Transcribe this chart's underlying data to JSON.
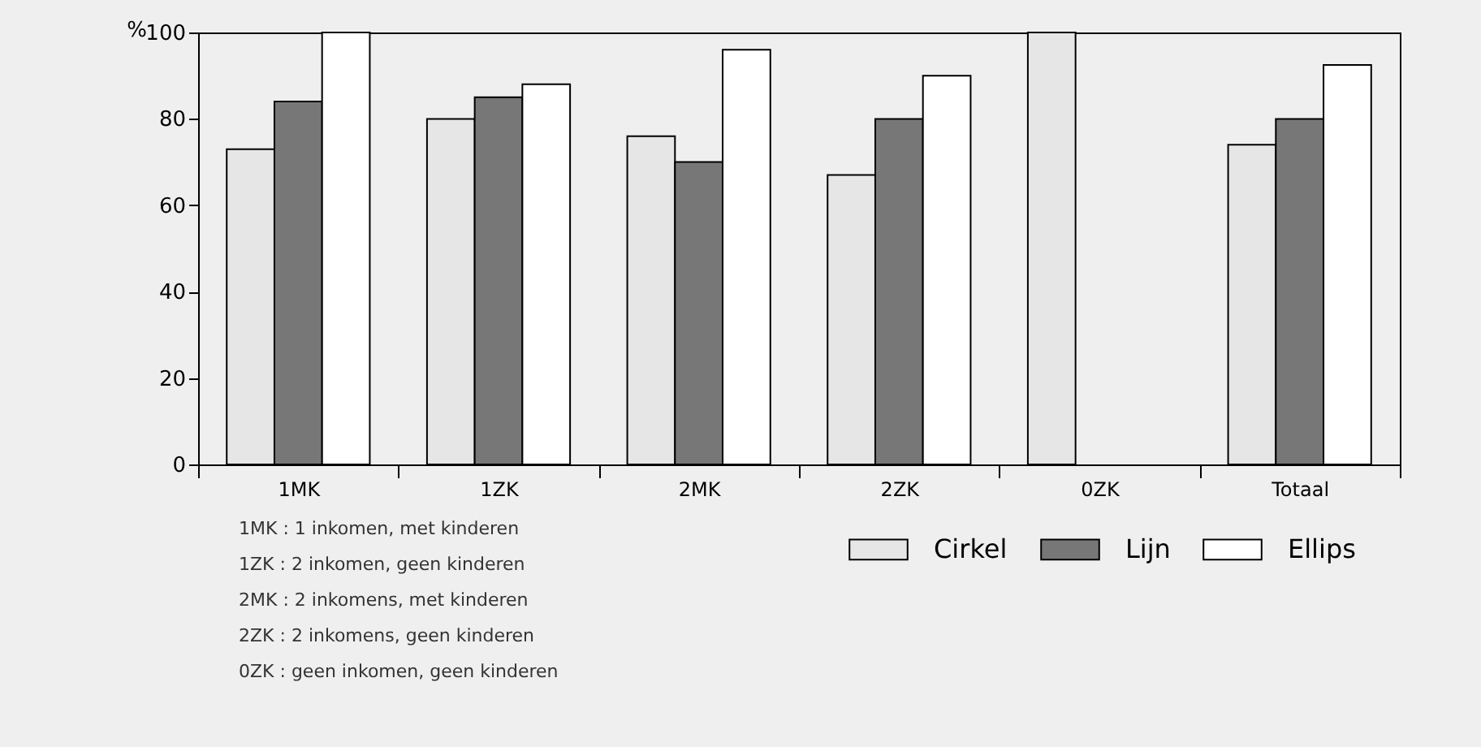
{
  "chart_data": {
    "type": "bar",
    "ylabel": "%",
    "categories": [
      "1MK",
      "1ZK",
      "2MK",
      "2ZK",
      "0ZK",
      "Totaal"
    ],
    "series": [
      {
        "name": "Cirkel",
        "color": "#e6e6e6",
        "values": [
          73,
          80,
          76,
          67,
          100,
          74
        ]
      },
      {
        "name": "Lijn",
        "color": "#777777",
        "values": [
          84,
          85,
          70,
          80,
          null,
          80
        ]
      },
      {
        "name": "Ellips",
        "color": "#ffffff",
        "values": [
          100,
          88,
          96,
          90,
          null,
          92.5
        ]
      }
    ],
    "ylim": [
      0,
      100
    ],
    "yticks": [
      0,
      20,
      40,
      60,
      80,
      100
    ],
    "grid": false,
    "legend": "bottom right",
    "annotations": [
      "1MK   : 1 inkomen, met kinderen",
      "1ZK    : 2 inkomen, geen kinderen",
      "2MK   : 2 inkomens, met kinderen",
      "2ZK    : 2 inkomens, geen kinderen",
      "0ZK    : geen inkomen, geen kinderen"
    ]
  }
}
